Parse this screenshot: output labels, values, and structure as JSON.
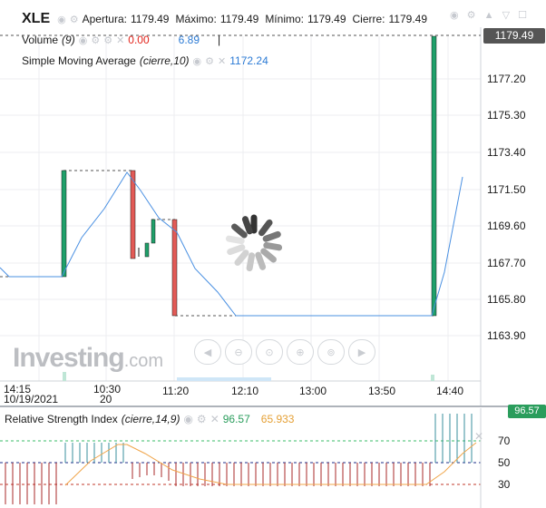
{
  "header": {
    "ticker": "XLE",
    "open_label": "Apertura:",
    "open_value": "1179.49",
    "high_label": "Máximo:",
    "high_value": "1179.49",
    "low_label": "Mínimo:",
    "low_value": "1179.49",
    "close_label": "Cierre:",
    "close_value": "1179.49"
  },
  "volume": {
    "label": "Volume",
    "param": "(9)",
    "value_red": "0.00",
    "value_blue": "6.89"
  },
  "sma": {
    "label": "Simple Moving Average",
    "param": "(cierre,10)",
    "value": "1172.24"
  },
  "rsi": {
    "label": "Relative Strength Index",
    "param": "(cierre,14,9)",
    "value_green": "96.57",
    "value_orange": "65.933",
    "badge": "96.57",
    "levels": [
      "70",
      "50",
      "30"
    ]
  },
  "price_badge": "1179.49",
  "y_axis": [
    "1177.20",
    "1175.30",
    "1173.40",
    "1171.50",
    "1169.60",
    "1167.70",
    "1165.80",
    "1163.90"
  ],
  "x_axis": {
    "times": [
      "14:15",
      "10:30",
      "11:20",
      "12:10",
      "13:00",
      "13:50",
      "14:40"
    ],
    "dates": [
      "10/19/2021",
      "20"
    ]
  },
  "logo": {
    "main": "Investing",
    "suffix": ".com"
  },
  "colors": {
    "up": "#1fa06a",
    "down": "#e25a56",
    "sma": "#4a90e2",
    "rsi": "#f0a54a"
  },
  "icons": {
    "eye": "eye-icon",
    "gear": "gear-icon",
    "close": "close-icon",
    "spinner": "loading-spinner-icon"
  }
}
